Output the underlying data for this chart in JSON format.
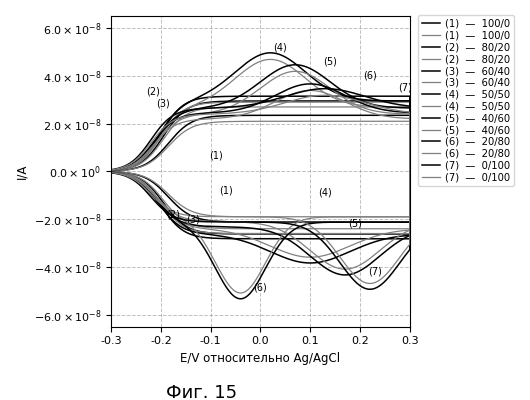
{
  "xlabel": "E/V относительно Ag/AgCl",
  "ylabel": "I/A",
  "caption": "Фиг. 15",
  "xlim": [
    -0.3,
    0.3
  ],
  "ylim": [
    -6.5e-08,
    6.5e-08
  ],
  "yticks": [
    -6e-08,
    -4e-08,
    -2e-08,
    0,
    2e-08,
    4e-08,
    6e-08
  ],
  "xticks": [
    -0.3,
    -0.2,
    -0.1,
    0,
    0.1,
    0.2,
    0.3
  ]
}
